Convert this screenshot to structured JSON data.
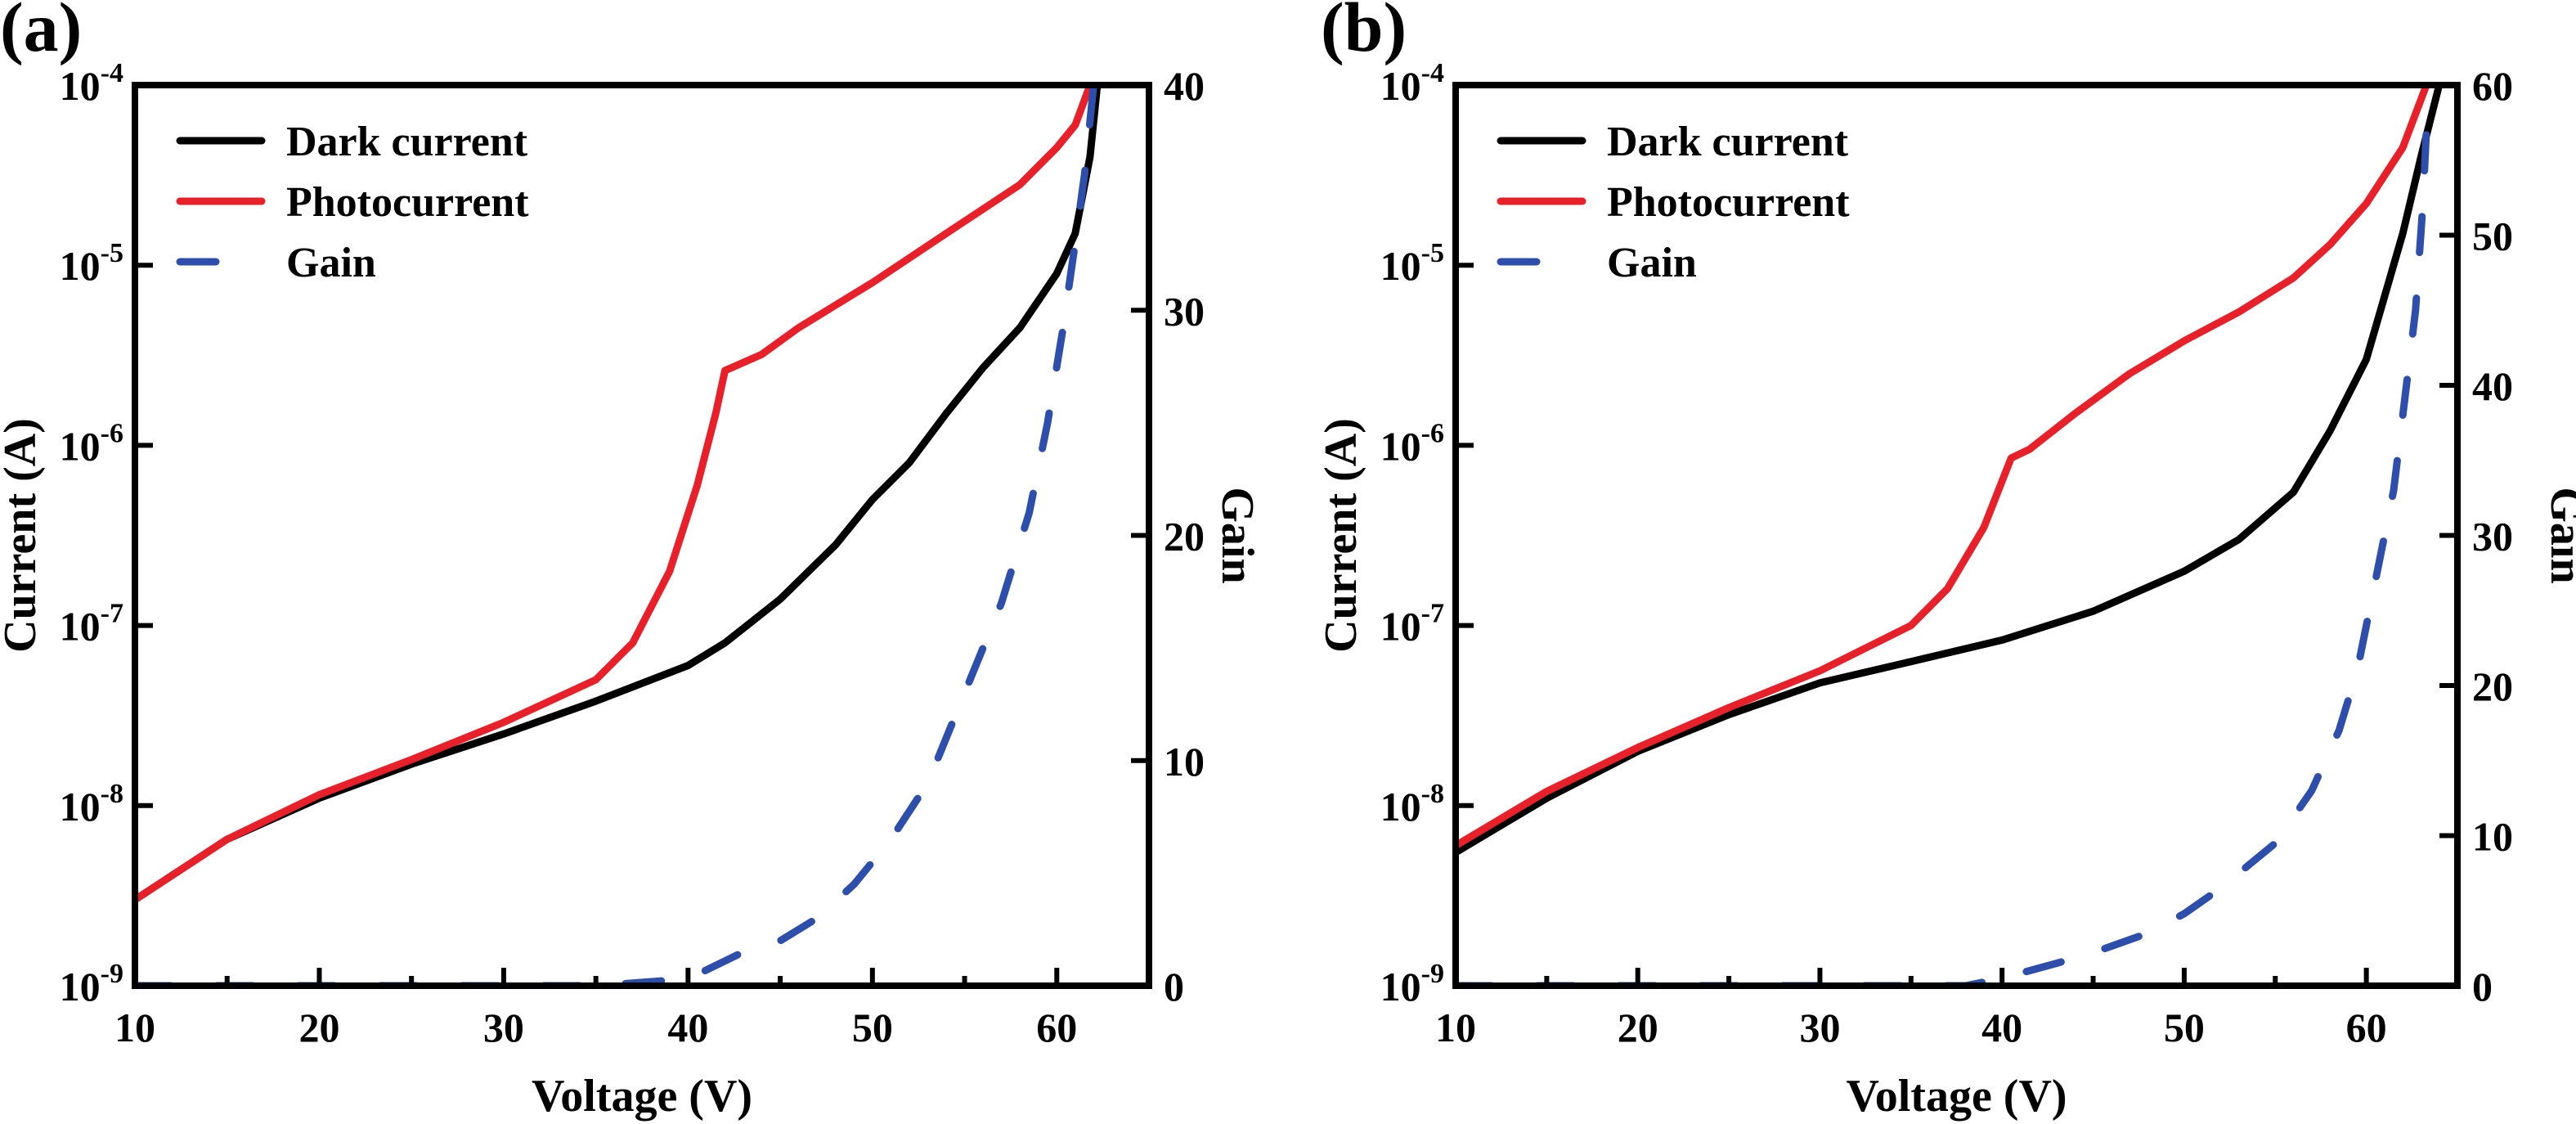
{
  "chart_data": [
    {
      "type": "line",
      "panel_label": "(a)",
      "xlabel": "Voltage (V)",
      "ylabel": "Current (A)",
      "y2label": "Gain",
      "xlim": [
        10,
        65
      ],
      "ylim": [
        1e-09,
        0.0001
      ],
      "yscale": "log",
      "y2lim": [
        0,
        40
      ],
      "xticks": [
        "10",
        "20",
        "30",
        "40",
        "50",
        "60"
      ],
      "yticks": [
        {
          "base": "10",
          "exp": "-9"
        },
        {
          "base": "10",
          "exp": "-8"
        },
        {
          "base": "10",
          "exp": "-7"
        },
        {
          "base": "10",
          "exp": "-6"
        },
        {
          "base": "10",
          "exp": "-5"
        },
        {
          "base": "10",
          "exp": "-4"
        }
      ],
      "y2ticks": [
        "0",
        "10",
        "20",
        "30",
        "40"
      ],
      "legend_position": "top-left",
      "series": [
        {
          "name": "Dark current",
          "axis": "left",
          "color": "#000000",
          "style": "solid",
          "x": [
            10,
            15,
            20,
            25,
            30,
            35,
            40,
            42,
            45,
            48,
            50,
            52,
            54,
            56,
            58,
            60,
            61,
            61.8,
            62.2
          ],
          "y": [
            3e-09,
            6.5e-09,
            1.1e-08,
            1.7e-08,
            2.5e-08,
            3.8e-08,
            6e-08,
            8e-08,
            1.4e-07,
            2.8e-07,
            5e-07,
            8e-07,
            1.5e-06,
            2.7e-06,
            4.5e-06,
            9e-06,
            1.5e-05,
            4e-05,
            0.0001
          ]
        },
        {
          "name": "Photocurrent",
          "axis": "left",
          "color": "#e8202a",
          "style": "solid",
          "x": [
            10,
            15,
            20,
            25,
            30,
            35,
            37,
            39,
            40.5,
            41.5,
            42,
            44,
            46,
            50,
            54,
            58,
            60,
            61,
            61.8
          ],
          "y": [
            3e-09,
            6.5e-09,
            1.15e-08,
            1.8e-08,
            2.9e-08,
            5e-08,
            8e-08,
            2e-07,
            6e-07,
            1.5e-06,
            2.6e-06,
            3.2e-06,
            4.5e-06,
            8e-06,
            1.5e-05,
            2.8e-05,
            4.5e-05,
            6e-05,
            0.0001
          ]
        },
        {
          "name": "Gain",
          "axis": "right",
          "color": "#2d4eaa",
          "style": "dashed",
          "x": [
            10,
            35,
            40,
            43,
            45,
            47,
            49,
            51,
            53,
            55,
            57,
            58.5,
            59.5,
            60.3,
            61,
            61.5,
            62
          ],
          "y": [
            0,
            0,
            0.3,
            1.5,
            2,
            3,
            4.5,
            6.5,
            9,
            13,
            17,
            21,
            25,
            29,
            33,
            36,
            40
          ]
        }
      ]
    },
    {
      "type": "line",
      "panel_label": "(b)",
      "xlabel": "Voltage (V)",
      "ylabel": "Current (A)",
      "y2label": "Gain",
      "xlim": [
        10,
        65
      ],
      "ylim": [
        1e-09,
        0.0001
      ],
      "yscale": "log",
      "y2lim": [
        0,
        60
      ],
      "xticks": [
        "10",
        "20",
        "30",
        "40",
        "50",
        "60"
      ],
      "yticks": [
        {
          "base": "10",
          "exp": "-9"
        },
        {
          "base": "10",
          "exp": "-8"
        },
        {
          "base": "10",
          "exp": "-7"
        },
        {
          "base": "10",
          "exp": "-6"
        },
        {
          "base": "10",
          "exp": "-5"
        },
        {
          "base": "10",
          "exp": "-4"
        }
      ],
      "y2ticks": [
        "0",
        "10",
        "20",
        "30",
        "40",
        "50",
        "60"
      ],
      "legend_position": "top-left",
      "series": [
        {
          "name": "Dark current",
          "axis": "left",
          "color": "#000000",
          "style": "solid",
          "x": [
            10,
            15,
            20,
            25,
            30,
            35,
            40,
            45,
            50,
            53,
            56,
            58,
            60,
            62,
            63,
            64
          ],
          "y": [
            5.5e-09,
            1.1e-08,
            2e-08,
            3.2e-08,
            4.8e-08,
            6.3e-08,
            8.3e-08,
            1.2e-07,
            2e-07,
            3e-07,
            5.5e-07,
            1.2e-06,
            3e-06,
            1.5e-05,
            4e-05,
            0.0001
          ]
        },
        {
          "name": "Photocurrent",
          "axis": "left",
          "color": "#e8202a",
          "style": "solid",
          "x": [
            10,
            15,
            20,
            25,
            30,
            35,
            37,
            39,
            40.5,
            41.5,
            44,
            47,
            50,
            53,
            56,
            58,
            60,
            62,
            63.3
          ],
          "y": [
            6e-09,
            1.2e-08,
            2.1e-08,
            3.5e-08,
            5.6e-08,
            1e-07,
            1.6e-07,
            3.5e-07,
            8.5e-07,
            9.5e-07,
            1.5e-06,
            2.5e-06,
            3.8e-06,
            5.5e-06,
            8.5e-06,
            1.3e-05,
            2.2e-05,
            4.5e-05,
            0.0001
          ]
        },
        {
          "name": "Gain",
          "axis": "right",
          "color": "#2d4eaa",
          "style": "dashed",
          "x": [
            10,
            38,
            40,
            43,
            45,
            48,
            50,
            52,
            55,
            57,
            58.5,
            59.5,
            60.5,
            61.5,
            62,
            62.7,
            63.1,
            63.3
          ],
          "y": [
            0,
            0,
            0.5,
            1.5,
            2.2,
            3.5,
            4.8,
            6.5,
            9.5,
            13,
            17,
            21,
            27,
            33,
            38,
            45,
            52,
            57
          ]
        }
      ]
    }
  ]
}
